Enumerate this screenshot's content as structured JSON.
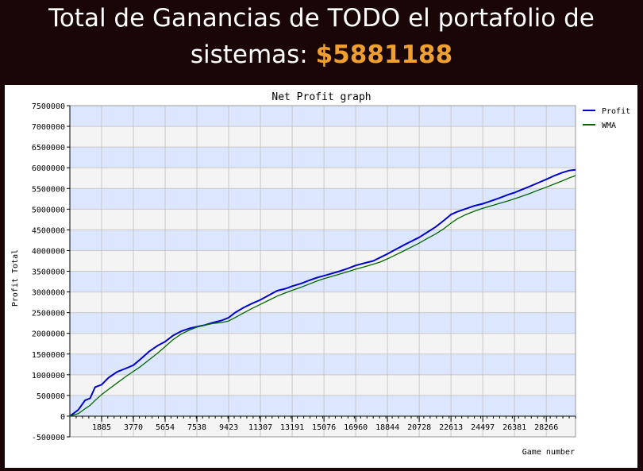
{
  "header": {
    "line1": "Total de Ganancias de TODO el portafolio de",
    "line2_prefix": "sistemas: ",
    "amount": "$5881188"
  },
  "colors": {
    "background": "#1a0606",
    "amount": "#f0a030",
    "band_blue": "#dde6ff",
    "band_gray": "#f4f4f4",
    "profit_line": "#0000cc",
    "wma_line": "#006600"
  },
  "chart_data": {
    "type": "line",
    "title": "Net Profit graph",
    "xlabel": "Game number",
    "ylabel": "Profit Total",
    "xlim": [
      0,
      30000
    ],
    "ylim": [
      -500000,
      7500000
    ],
    "x_ticks": [
      1885,
      3770,
      5654,
      7538,
      9423,
      11307,
      13191,
      15076,
      16960,
      18844,
      20728,
      22613,
      24497,
      26381,
      28266
    ],
    "y_ticks": [
      -500000,
      0,
      500000,
      1000000,
      1500000,
      2000000,
      2500000,
      3000000,
      3500000,
      4000000,
      4500000,
      5000000,
      5500000,
      6000000,
      6500000,
      7000000,
      7500000
    ],
    "grid": true,
    "legend": "top-right",
    "series": [
      {
        "name": "Profit",
        "color": "#0000cc",
        "x": [
          0,
          500,
          900,
          1200,
          1500,
          1885,
          2300,
          2800,
          3300,
          3770,
          4200,
          4700,
          5200,
          5654,
          6100,
          6600,
          7100,
          7538,
          8000,
          8500,
          9000,
          9423,
          9800,
          10300,
          10800,
          11307,
          11800,
          12300,
          12800,
          13191,
          13700,
          14200,
          14700,
          15076,
          15500,
          16000,
          16500,
          16960,
          17500,
          18000,
          18400,
          18844,
          19300,
          19800,
          20300,
          20728,
          21200,
          21700,
          22200,
          22613,
          23000,
          23500,
          24000,
          24497,
          25000,
          25500,
          26000,
          26381,
          26800,
          27300,
          27800,
          28266,
          28700,
          29200,
          29600,
          30000
        ],
        "values": [
          0,
          150000,
          380000,
          430000,
          700000,
          760000,
          930000,
          1070000,
          1150000,
          1230000,
          1380000,
          1560000,
          1700000,
          1800000,
          1940000,
          2050000,
          2120000,
          2160000,
          2200000,
          2260000,
          2310000,
          2380000,
          2500000,
          2620000,
          2720000,
          2810000,
          2920000,
          3030000,
          3080000,
          3140000,
          3200000,
          3280000,
          3350000,
          3390000,
          3440000,
          3500000,
          3570000,
          3640000,
          3700000,
          3750000,
          3830000,
          3920000,
          4020000,
          4130000,
          4230000,
          4320000,
          4440000,
          4570000,
          4730000,
          4870000,
          4940000,
          5010000,
          5080000,
          5130000,
          5200000,
          5270000,
          5350000,
          5400000,
          5470000,
          5550000,
          5640000,
          5720000,
          5800000,
          5880000,
          5930000,
          5950000
        ]
      },
      {
        "name": "WMA",
        "color": "#006600",
        "x": [
          0,
          500,
          900,
          1200,
          1500,
          1885,
          2300,
          2800,
          3300,
          3770,
          4200,
          4700,
          5200,
          5654,
          6100,
          6600,
          7100,
          7538,
          8000,
          8500,
          9000,
          9423,
          9800,
          10300,
          10800,
          11307,
          11800,
          12300,
          12800,
          13191,
          13700,
          14200,
          14700,
          15076,
          15500,
          16000,
          16500,
          16960,
          17500,
          18000,
          18400,
          18844,
          19300,
          19800,
          20300,
          20728,
          21200,
          21700,
          22200,
          22613,
          23000,
          23500,
          24000,
          24497,
          25000,
          25500,
          26000,
          26381,
          26800,
          27300,
          27800,
          28266,
          28700,
          29200,
          29600,
          30000
        ],
        "values": [
          0,
          60000,
          180000,
          260000,
          380000,
          520000,
          650000,
          800000,
          950000,
          1080000,
          1200000,
          1360000,
          1520000,
          1680000,
          1840000,
          1980000,
          2080000,
          2150000,
          2200000,
          2240000,
          2260000,
          2300000,
          2380000,
          2490000,
          2600000,
          2700000,
          2800000,
          2900000,
          2980000,
          3040000,
          3110000,
          3190000,
          3270000,
          3320000,
          3370000,
          3430000,
          3490000,
          3550000,
          3610000,
          3670000,
          3720000,
          3800000,
          3890000,
          3990000,
          4090000,
          4180000,
          4290000,
          4400000,
          4530000,
          4660000,
          4770000,
          4870000,
          4950000,
          5020000,
          5080000,
          5140000,
          5200000,
          5250000,
          5310000,
          5380000,
          5460000,
          5530000,
          5600000,
          5680000,
          5750000,
          5810000
        ]
      }
    ]
  }
}
